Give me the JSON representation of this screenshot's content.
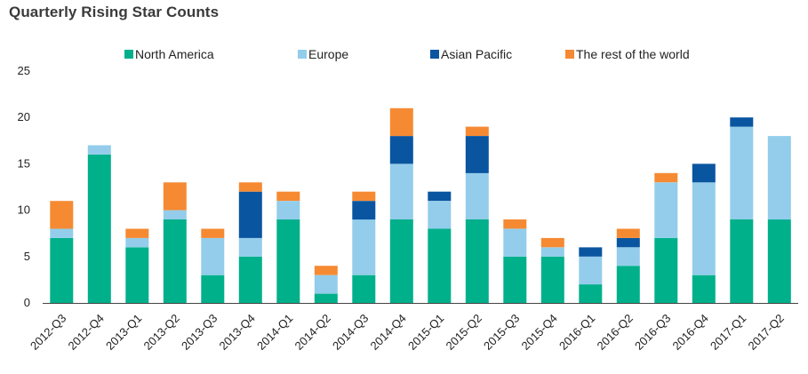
{
  "chart_data": {
    "type": "bar",
    "stacked": true,
    "title": "Quarterly Rising Star Counts",
    "categories": [
      "2012-Q3",
      "2012-Q4",
      "2013-Q1",
      "2013-Q2",
      "2013-Q3",
      "2013-Q4",
      "2014-Q1",
      "2014-Q2",
      "2014-Q3",
      "2014-Q4",
      "2015-Q1",
      "2015-Q2",
      "2015-Q3",
      "2015-Q4",
      "2016-Q1",
      "2016-Q2",
      "2016-Q3",
      "2016-Q4",
      "2017-Q1",
      "2017-Q2"
    ],
    "series": [
      {
        "name": "North America",
        "color": "#00b08b",
        "values": [
          7,
          16,
          6,
          9,
          3,
          5,
          9,
          1,
          3,
          9,
          8,
          9,
          5,
          5,
          2,
          4,
          7,
          3,
          9,
          9
        ]
      },
      {
        "name": "Europe",
        "color": "#93cdeb",
        "values": [
          1,
          1,
          1,
          1,
          4,
          2,
          2,
          2,
          6,
          6,
          3,
          5,
          3,
          1,
          3,
          2,
          6,
          10,
          10,
          9
        ]
      },
      {
        "name": "Asian Pacific",
        "color": "#0a55a0",
        "values": [
          0,
          0,
          0,
          0,
          0,
          5,
          0,
          0,
          2,
          3,
          1,
          4,
          0,
          0,
          1,
          1,
          0,
          2,
          1,
          0
        ]
      },
      {
        "name": "The rest of the world",
        "color": "#f58a33",
        "values": [
          3,
          0,
          1,
          3,
          1,
          1,
          1,
          1,
          1,
          3,
          0,
          1,
          1,
          1,
          0,
          1,
          1,
          0,
          0,
          0
        ]
      }
    ],
    "ylim": [
      0,
      25
    ],
    "yticks": [
      0,
      5,
      10,
      15,
      20,
      25
    ],
    "ytick_labels": [
      "0",
      "5",
      "10",
      "15",
      "20",
      "25"
    ],
    "xlabel": "",
    "ylabel": "",
    "grid": false,
    "legend_position": "top"
  }
}
